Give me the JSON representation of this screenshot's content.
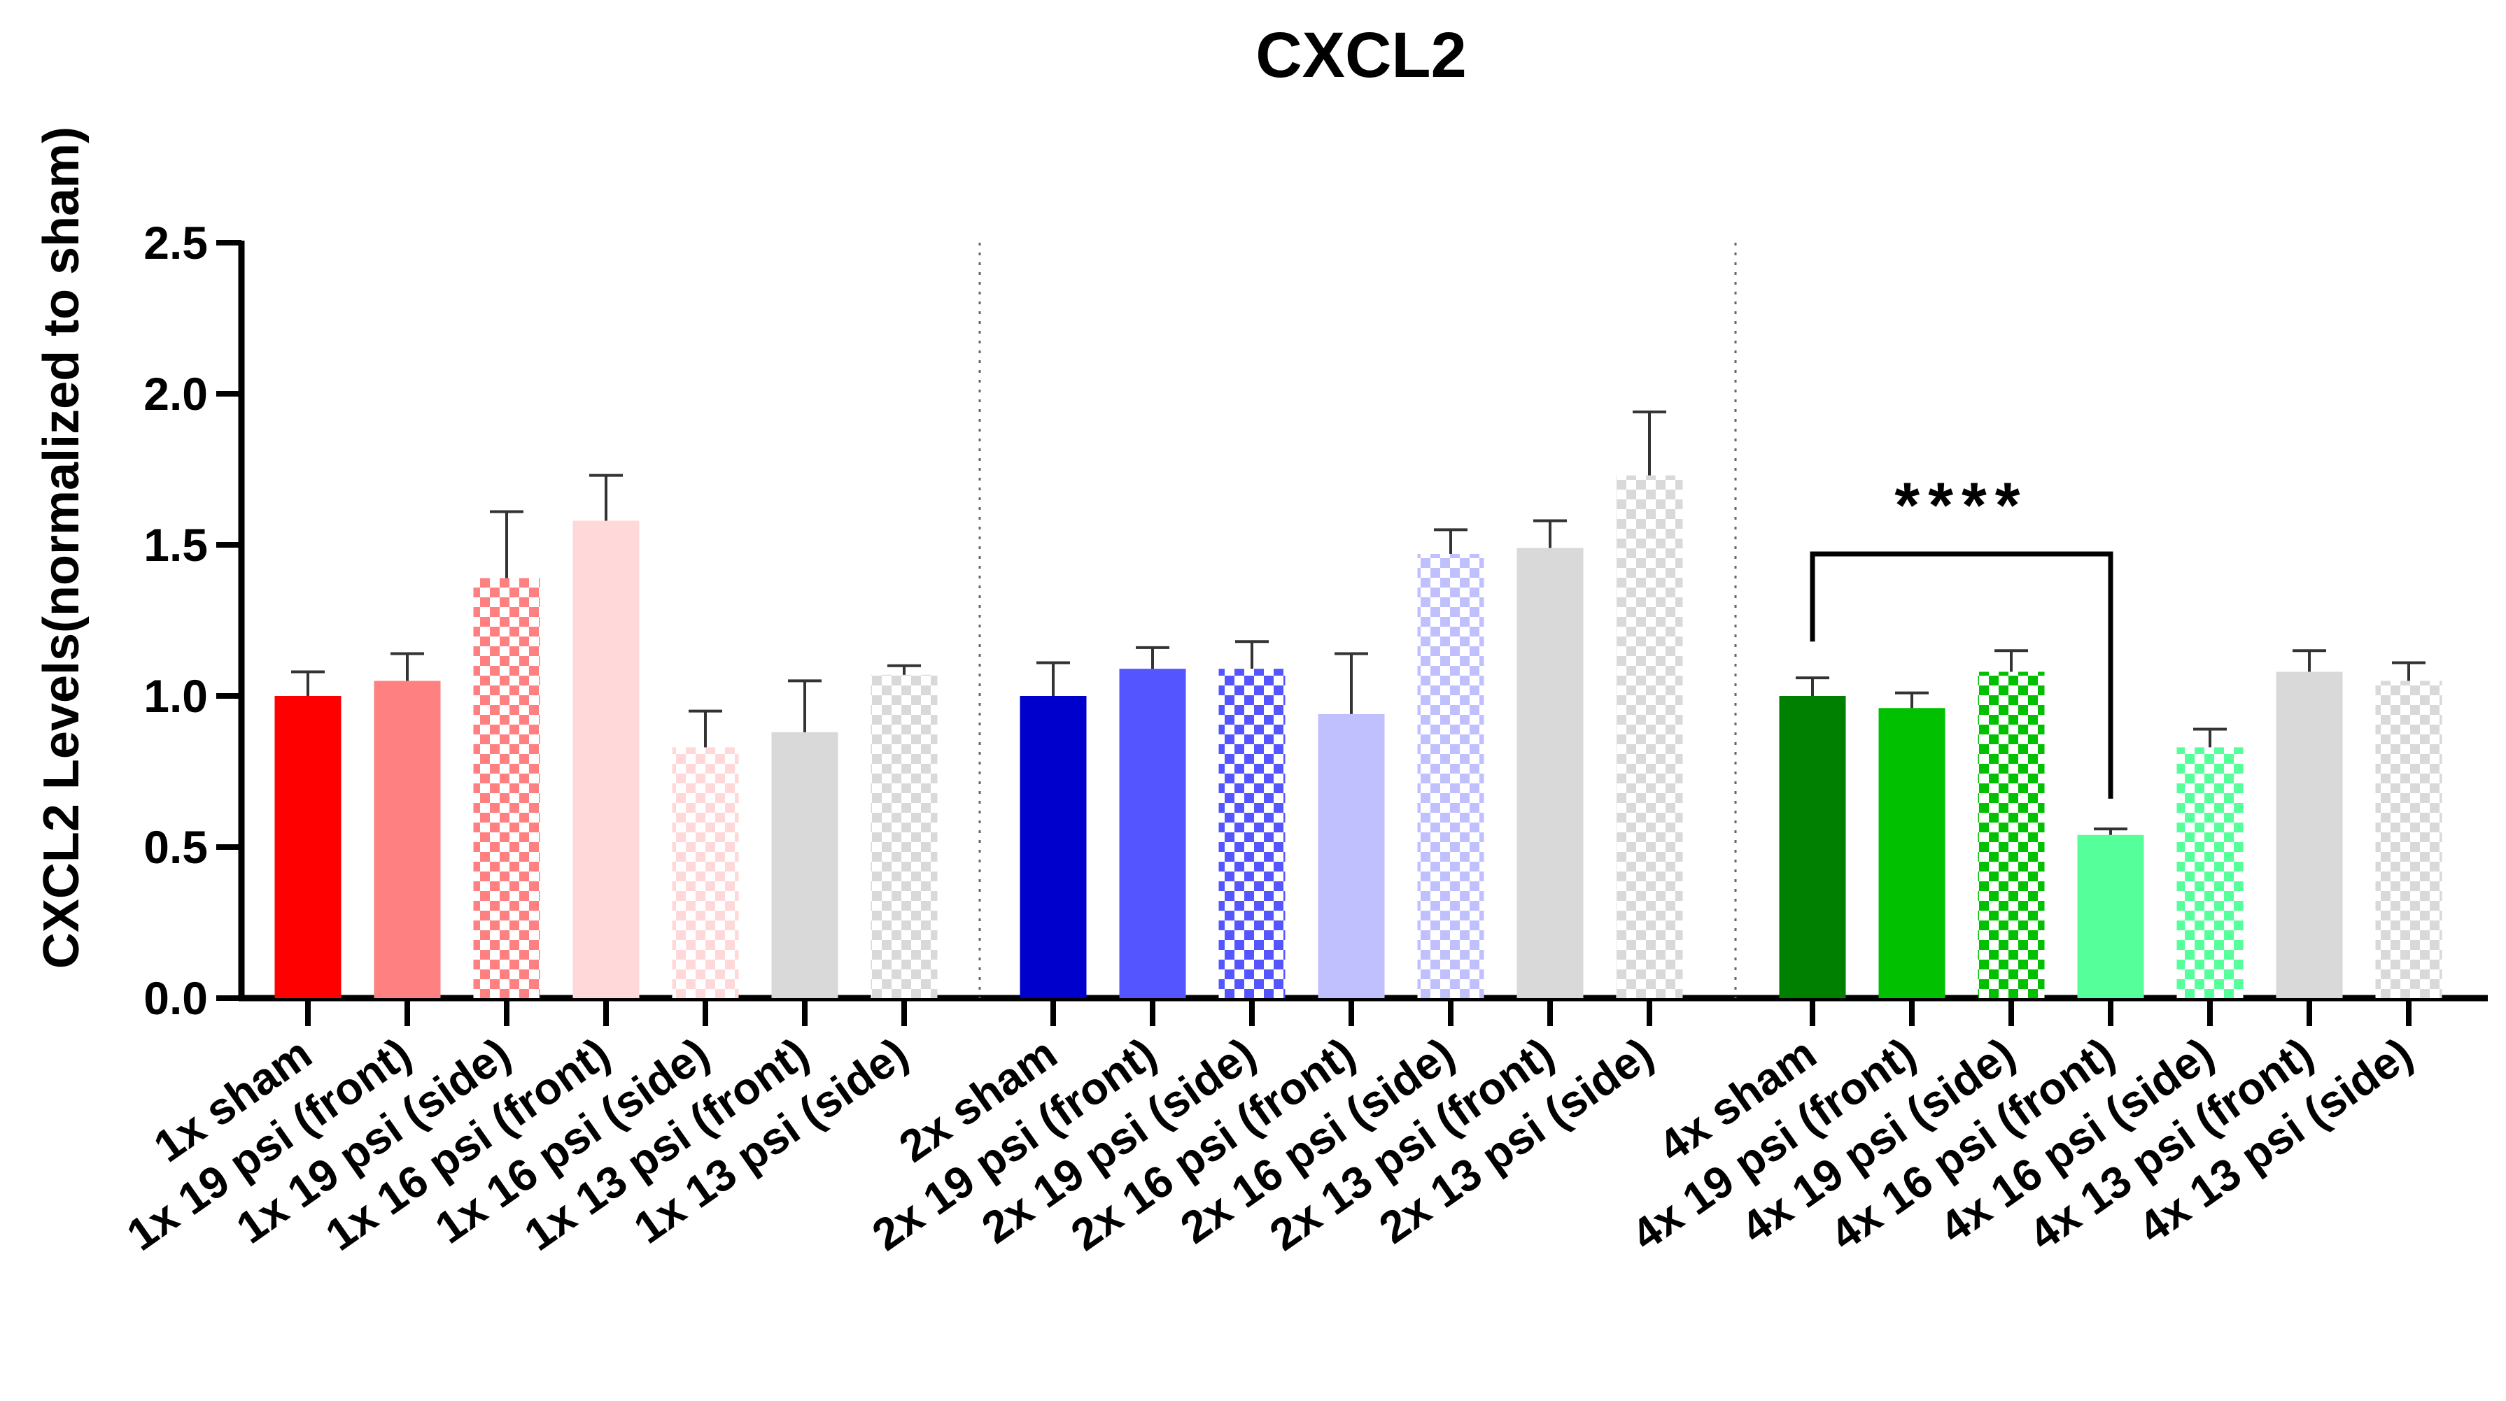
{
  "chart_data": {
    "type": "bar",
    "title": "CXCL2",
    "xlabel": "",
    "ylabel": "CXCL2 Levels(normalized to sham)",
    "ylim": [
      0,
      2.5
    ],
    "yticks": [
      "0.0",
      "0.5",
      "1.0",
      "1.5",
      "2.0",
      "2.5"
    ],
    "grid": false,
    "legend": "none",
    "groups": [
      {
        "bars": [
          {
            "label": "1x sham",
            "value": 1.0,
            "error": 0.08,
            "color": "#ff0000",
            "pattern": "solid"
          },
          {
            "label": "1x 19 psi (front)",
            "value": 1.05,
            "error": 0.09,
            "color": "#ff8080",
            "pattern": "solid"
          },
          {
            "label": "1x 19 psi (side)",
            "value": 1.39,
            "error": 0.22,
            "color": "#ff8080",
            "pattern": "checker"
          },
          {
            "label": "1x 16 psi (front)",
            "value": 1.58,
            "error": 0.15,
            "color": "#ffd9d9",
            "pattern": "solid"
          },
          {
            "label": "1x 16 psi (side)",
            "value": 0.83,
            "error": 0.12,
            "color": "#ffd9d9",
            "pattern": "checker"
          },
          {
            "label": "1x 13 psi (front)",
            "value": 0.88,
            "error": 0.17,
            "color": "#d9d9d9",
            "pattern": "solid"
          },
          {
            "label": "1x 13 psi (side)",
            "value": 1.07,
            "error": 0.03,
            "color": "#d9d9d9",
            "pattern": "checker"
          }
        ]
      },
      {
        "bars": [
          {
            "label": "2x sham",
            "value": 1.0,
            "error": 0.11,
            "color": "#0000cc",
            "pattern": "solid"
          },
          {
            "label": "2x 19 psi (front)",
            "value": 1.09,
            "error": 0.07,
            "color": "#5555ff",
            "pattern": "solid"
          },
          {
            "label": "2x 19 psi (side)",
            "value": 1.09,
            "error": 0.09,
            "color": "#5555ff",
            "pattern": "checker"
          },
          {
            "label": "2x 16 psi (front)",
            "value": 0.94,
            "error": 0.2,
            "color": "#c0c0ff",
            "pattern": "solid"
          },
          {
            "label": "2x 16 psi (side)",
            "value": 1.47,
            "error": 0.08,
            "color": "#c0c0ff",
            "pattern": "checker"
          },
          {
            "label": "2x 13 psi (front)",
            "value": 1.49,
            "error": 0.09,
            "color": "#d9d9d9",
            "pattern": "solid"
          },
          {
            "label": "2x 13 psi (side)",
            "value": 1.73,
            "error": 0.21,
            "color": "#d9d9d9",
            "pattern": "checker"
          }
        ]
      },
      {
        "bars": [
          {
            "label": "4x sham",
            "value": 1.0,
            "error": 0.06,
            "color": "#008000",
            "pattern": "solid"
          },
          {
            "label": "4x 19 psi (front)",
            "value": 0.96,
            "error": 0.05,
            "color": "#00c000",
            "pattern": "solid"
          },
          {
            "label": "4x 19 psi (side)",
            "value": 1.08,
            "error": 0.07,
            "color": "#00c000",
            "pattern": "checker"
          },
          {
            "label": "4x 16 psi (front)",
            "value": 0.54,
            "error": 0.02,
            "color": "#55ff99",
            "pattern": "solid"
          },
          {
            "label": "4x 16 psi (side)",
            "value": 0.83,
            "error": 0.06,
            "color": "#55ff99",
            "pattern": "checker"
          },
          {
            "label": "4x 13 psi (front)",
            "value": 1.08,
            "error": 0.07,
            "color": "#d9d9d9",
            "pattern": "solid"
          },
          {
            "label": "4x 13 psi (side)",
            "value": 1.05,
            "error": 0.06,
            "color": "#d9d9d9",
            "pattern": "checker"
          }
        ]
      }
    ],
    "annotations": [
      {
        "text": "****",
        "from": "4x sham",
        "to": "4x 16 psi (front)",
        "y": 1.47
      }
    ]
  }
}
